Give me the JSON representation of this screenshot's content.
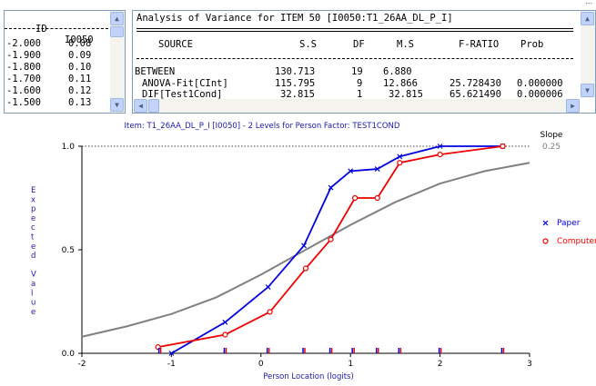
{
  "top_strip_text": "...",
  "item_list": {
    "headers": [
      "ID",
      "I0050"
    ],
    "rows": [
      [
        "-2.000",
        "0.08"
      ],
      [
        "-1.900",
        "0.09"
      ],
      [
        "-1.800",
        "0.10"
      ],
      [
        "-1.700",
        "0.11"
      ],
      [
        "-1.600",
        "0.12"
      ],
      [
        "-1.500",
        "0.13"
      ]
    ]
  },
  "anova": {
    "title": "Analysis of Variance for ITEM 50 [I0050:T1_26AA_DL_P_I]",
    "headers": [
      "SOURCE",
      "S.S",
      "DF",
      "M.S",
      "F-RATIO",
      "Prob"
    ],
    "rows": [
      [
        "BETWEEN",
        "130.713",
        "19",
        "6.880",
        "",
        ""
      ],
      [
        "ANOVA-Fit[CInt]",
        "115.795",
        "9",
        "12.866",
        "25.728430",
        "0.000000"
      ],
      [
        "DIF[Test1Cond]",
        "32.815",
        "1",
        "32.815",
        "65.621490",
        "0.000006"
      ]
    ]
  },
  "chart_data": {
    "type": "line",
    "title": "Item: T1_26AA_DL_P_I [I0050] - 2 Levels for Person Factor: TEST1COND",
    "xlabel": "Person Location (logits)",
    "ylabel": "Expected Value",
    "xlim": [
      -2,
      3
    ],
    "ylim": [
      0,
      1
    ],
    "x_ticks": [
      "-2",
      "-1",
      "0",
      "1",
      "2",
      "3"
    ],
    "y_ticks": [
      "0.0",
      "0.5",
      "1.0"
    ],
    "slope_label": "Slope",
    "slope_value": "0.25",
    "icc": {
      "x": [
        -2.0,
        -1.5,
        -1.0,
        -0.5,
        0.0,
        0.5,
        1.0,
        1.5,
        2.0,
        2.5,
        3.0
      ],
      "y": [
        0.08,
        0.13,
        0.19,
        0.27,
        0.38,
        0.5,
        0.62,
        0.73,
        0.82,
        0.88,
        0.92
      ],
      "color": "#808080"
    },
    "series": [
      {
        "name": "Paper",
        "color": "#0000dd",
        "marker": "x",
        "x": [
          -1.0,
          -0.4,
          0.08,
          0.48,
          0.78,
          1.0,
          1.3,
          1.55,
          2.0,
          2.7
        ],
        "y": [
          0.0,
          0.15,
          0.32,
          0.52,
          0.8,
          0.88,
          0.89,
          0.95,
          1.0,
          1.0
        ]
      },
      {
        "name": "Computer",
        "color": "#ee0000",
        "marker": "o",
        "x": [
          -1.15,
          -0.4,
          0.1,
          0.5,
          0.78,
          1.05,
          1.3,
          1.55,
          2.0,
          2.7
        ],
        "y": [
          0.03,
          0.09,
          0.2,
          0.41,
          0.55,
          0.75,
          0.75,
          0.92,
          0.96,
          1.0
        ]
      }
    ],
    "class_interval_marks": [
      -1.13,
      -0.4,
      0.08,
      0.48,
      0.78,
      1.03,
      1.3,
      1.55,
      2.0,
      2.7
    ],
    "legend_placement": "right",
    "grid": false,
    "reference_line_y": 1.0
  }
}
